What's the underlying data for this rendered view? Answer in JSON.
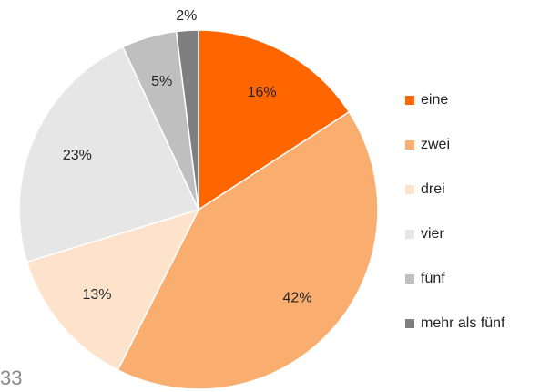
{
  "chart_data": {
    "type": "pie",
    "categories": [
      "eine",
      "zwei",
      "drei",
      "vier",
      "fünf",
      "mehr als fünf"
    ],
    "values": [
      16,
      42,
      13,
      23,
      5,
      2
    ],
    "value_labels": [
      "16%",
      "42%",
      "13%",
      "23%",
      "5%",
      "2%"
    ],
    "colors": [
      "#ff6600",
      "#f9ad6e",
      "#fde3cb",
      "#e6e6e6",
      "#bfbfbf",
      "#7f7f7f"
    ],
    "legend": "right"
  },
  "page_number": "33"
}
